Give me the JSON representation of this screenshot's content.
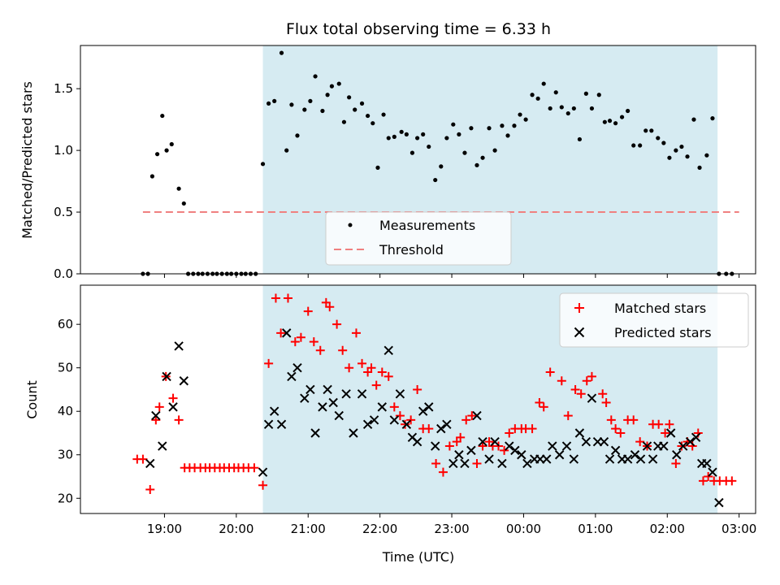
{
  "title": "Flux total observing time = 6.33 h",
  "xlabel": "Time (UTC)",
  "x_ticks": [
    "19:00",
    "20:00",
    "21:00",
    "22:00",
    "23:00",
    "00:00",
    "01:00",
    "02:00",
    "03:00"
  ],
  "x_tick_hours": [
    19,
    20,
    21,
    22,
    23,
    24,
    25,
    26,
    27
  ],
  "xlim_hours": [
    17.83,
    27.23
  ],
  "observing_window_hours": [
    20.37,
    26.7
  ],
  "colors": {
    "window": "#add8e6",
    "measurements": "#000000",
    "threshold": "#f08080",
    "matched": "#ff0000",
    "predicted": "#000000"
  },
  "chart_data": [
    {
      "type": "scatter",
      "title": "Flux total observing time = 6.33 h",
      "ylabel": "Matched/Predicted stars",
      "ylim": [
        0,
        1.85
      ],
      "yticks": [
        "0.0",
        "0.5",
        "1.0",
        "1.5"
      ],
      "ytick_values": [
        0,
        0.5,
        1.0,
        1.5
      ],
      "legend_position": "lower center",
      "threshold": {
        "name": "Threshold",
        "value": 0.5,
        "x_range": [
          18.7,
          27.0
        ]
      },
      "series": [
        {
          "name": "Measurements",
          "x": [
            18.7,
            18.77,
            18.83,
            18.9,
            18.97,
            19.03,
            19.1,
            19.2,
            19.27,
            19.33,
            19.4,
            19.47,
            19.53,
            19.6,
            19.67,
            19.73,
            19.8,
            19.87,
            19.93,
            20.0,
            20.07,
            20.13,
            20.2,
            20.27,
            20.37,
            20.45,
            20.53,
            20.63,
            20.7,
            20.77,
            20.85,
            20.95,
            21.03,
            21.1,
            21.2,
            21.27,
            21.33,
            21.43,
            21.5,
            21.57,
            21.65,
            21.75,
            21.83,
            21.9,
            21.97,
            22.05,
            22.12,
            22.2,
            22.3,
            22.37,
            22.45,
            22.52,
            22.6,
            22.68,
            22.77,
            22.85,
            22.93,
            23.02,
            23.1,
            23.18,
            23.27,
            23.35,
            23.43,
            23.52,
            23.6,
            23.7,
            23.78,
            23.87,
            23.95,
            24.03,
            24.12,
            24.2,
            24.28,
            24.37,
            24.45,
            24.53,
            24.62,
            24.7,
            24.78,
            24.87,
            24.95,
            25.05,
            25.13,
            25.2,
            25.28,
            25.37,
            25.45,
            25.53,
            25.62,
            25.7,
            25.78,
            25.87,
            25.95,
            26.03,
            26.12,
            26.2,
            26.28,
            26.37,
            26.45,
            26.55,
            26.63,
            26.72,
            26.82,
            26.9
          ],
          "y": [
            0.0,
            0.0,
            0.79,
            0.97,
            1.28,
            1.0,
            1.05,
            0.69,
            0.57,
            0.0,
            0.0,
            0.0,
            0.0,
            0.0,
            0.0,
            0.0,
            0.0,
            0.0,
            0.0,
            0.0,
            0.0,
            0.0,
            0.0,
            0.0,
            0.89,
            1.38,
            1.4,
            1.79,
            1.0,
            1.37,
            1.12,
            1.33,
            1.4,
            1.6,
            1.32,
            1.45,
            1.52,
            1.54,
            1.23,
            1.43,
            1.33,
            1.38,
            1.28,
            1.22,
            0.86,
            1.29,
            1.1,
            1.11,
            1.15,
            1.13,
            0.98,
            1.1,
            1.13,
            1.03,
            0.76,
            0.87,
            1.1,
            1.21,
            1.13,
            0.98,
            1.18,
            0.88,
            0.94,
            1.18,
            1.0,
            1.2,
            1.12,
            1.2,
            1.29,
            1.25,
            1.45,
            1.42,
            1.54,
            1.34,
            1.47,
            1.35,
            1.3,
            1.34,
            1.09,
            1.46,
            1.34,
            1.45,
            1.23,
            1.24,
            1.22,
            1.27,
            1.32,
            1.04,
            1.04,
            1.16,
            1.16,
            1.1,
            1.06,
            0.94,
            1.0,
            1.03,
            0.95,
            1.25,
            0.86,
            0.96,
            1.26,
            0.0,
            0.0,
            0.0
          ]
        }
      ]
    },
    {
      "type": "scatter",
      "ylabel": "Count",
      "ylim": [
        16.5,
        69
      ],
      "yticks": [
        "20",
        "30",
        "40",
        "50",
        "60"
      ],
      "ytick_values": [
        20,
        30,
        40,
        50,
        60
      ],
      "legend_position": "upper right",
      "series": [
        {
          "name": "Matched stars",
          "marker": "plus",
          "x": [
            18.62,
            18.7,
            18.8,
            18.88,
            18.93,
            19.02,
            19.12,
            19.2,
            19.28,
            19.35,
            19.42,
            19.5,
            19.57,
            19.63,
            19.7,
            19.77,
            19.83,
            19.9,
            19.97,
            20.03,
            20.1,
            20.17,
            20.25,
            20.37,
            20.45,
            20.55,
            20.62,
            20.72,
            20.82,
            20.9,
            21.0,
            21.08,
            21.17,
            21.25,
            21.3,
            21.4,
            21.48,
            21.57,
            21.67,
            21.75,
            21.83,
            21.88,
            21.95,
            22.03,
            22.12,
            22.2,
            22.28,
            22.35,
            22.43,
            22.52,
            22.6,
            22.68,
            22.78,
            22.88,
            22.97,
            23.07,
            23.12,
            23.2,
            23.28,
            23.35,
            23.43,
            23.52,
            23.57,
            23.65,
            23.73,
            23.8,
            23.88,
            23.97,
            24.03,
            24.12,
            24.22,
            24.28,
            24.37,
            24.53,
            24.62,
            24.72,
            24.8,
            24.88,
            24.95,
            25.1,
            25.15,
            25.22,
            25.28,
            25.35,
            25.45,
            25.53,
            25.62,
            25.72,
            25.8,
            25.88,
            25.97,
            26.03,
            26.12,
            26.2,
            26.28,
            26.35,
            26.43,
            26.5,
            26.57,
            26.65,
            26.73,
            26.82,
            26.9
          ],
          "y": [
            29,
            29,
            22,
            38,
            41,
            48,
            43,
            38,
            27,
            27,
            27,
            27,
            27,
            27,
            27,
            27,
            27,
            27,
            27,
            27,
            27,
            27,
            27,
            23,
            51,
            66,
            58,
            66,
            56,
            57,
            63,
            56,
            54,
            65,
            64,
            60,
            54,
            50,
            58,
            51,
            49,
            50,
            46,
            49,
            48,
            41,
            39,
            37,
            38,
            45,
            36,
            36,
            28,
            26,
            32,
            33,
            34,
            38,
            39,
            28,
            32,
            33,
            32,
            32,
            31,
            35,
            36,
            36,
            36,
            36,
            42,
            41,
            49,
            47,
            39,
            45,
            44,
            47,
            48,
            44,
            42,
            38,
            36,
            35,
            38,
            38,
            33,
            32,
            37,
            37,
            35,
            37,
            28,
            32,
            33,
            32,
            35,
            24,
            25,
            24,
            24,
            24,
            24
          ]
        },
        {
          "name": "Predicted stars",
          "marker": "x",
          "x": [
            18.8,
            18.88,
            18.97,
            19.03,
            19.12,
            19.2,
            19.27,
            20.37,
            20.45,
            20.53,
            20.63,
            20.7,
            20.77,
            20.85,
            20.95,
            21.03,
            21.1,
            21.2,
            21.27,
            21.35,
            21.43,
            21.53,
            21.63,
            21.75,
            21.83,
            21.92,
            22.03,
            22.12,
            22.2,
            22.28,
            22.37,
            22.45,
            22.52,
            22.6,
            22.68,
            22.77,
            22.85,
            22.93,
            23.02,
            23.1,
            23.18,
            23.27,
            23.35,
            23.43,
            23.52,
            23.6,
            23.7,
            23.8,
            23.88,
            23.97,
            24.05,
            24.15,
            24.23,
            24.32,
            24.4,
            24.5,
            24.6,
            24.7,
            24.78,
            24.87,
            24.95,
            25.03,
            25.12,
            25.2,
            25.28,
            25.37,
            25.45,
            25.55,
            25.63,
            25.72,
            25.8,
            25.87,
            25.95,
            26.05,
            26.13,
            26.22,
            26.32,
            26.4,
            26.48,
            26.55,
            26.63,
            26.72
          ],
          "y": [
            28,
            39,
            32,
            48,
            41,
            55,
            47,
            26,
            37,
            40,
            37,
            58,
            48,
            50,
            43,
            45,
            35,
            41,
            45,
            42,
            39,
            44,
            35,
            44,
            37,
            38,
            41,
            54,
            38,
            44,
            37,
            34,
            33,
            40,
            41,
            32,
            36,
            37,
            28,
            30,
            28,
            31,
            39,
            33,
            29,
            33,
            28,
            32,
            31,
            30,
            28,
            29,
            29,
            29,
            32,
            30,
            32,
            29,
            35,
            33,
            43,
            33,
            33,
            29,
            31,
            29,
            29,
            30,
            29,
            32,
            29,
            32,
            32,
            35,
            30,
            32,
            33,
            34,
            28,
            28,
            26,
            19
          ]
        }
      ]
    }
  ]
}
